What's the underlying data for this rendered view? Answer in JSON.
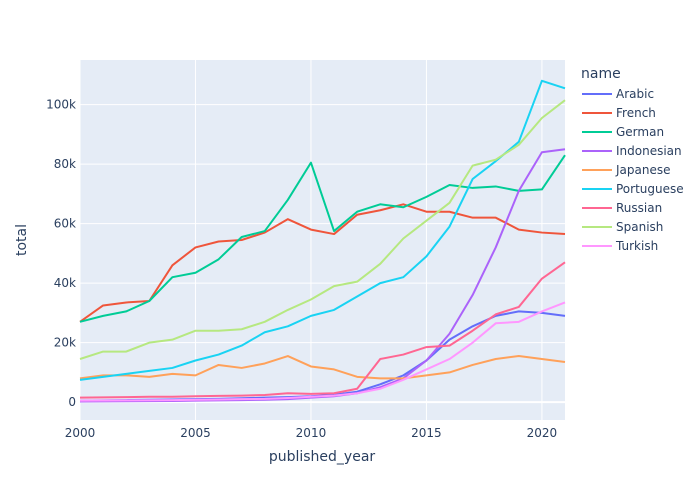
{
  "chart_data": {
    "type": "line",
    "xlabel": "published_year",
    "ylabel": "total",
    "xlim": [
      2000,
      2021
    ],
    "ylim": [
      -6000,
      115000
    ],
    "grid": true,
    "legend_title": "name",
    "legend_position": "right",
    "x_ticks": [
      2000,
      2005,
      2010,
      2015,
      2020
    ],
    "x_tick_labels": [
      "2000",
      "2005",
      "2010",
      "2015",
      "2020"
    ],
    "y_ticks": [
      0,
      20000,
      40000,
      60000,
      80000,
      100000
    ],
    "y_tick_labels": [
      "0",
      "20k",
      "40k",
      "60k",
      "80k",
      "100k"
    ],
    "x": [
      2000,
      2001,
      2002,
      2003,
      2004,
      2005,
      2006,
      2007,
      2008,
      2009,
      2010,
      2011,
      2012,
      2013,
      2014,
      2015,
      2016,
      2017,
      2018,
      2019,
      2020,
      2021
    ],
    "series": [
      {
        "name": "Arabic",
        "color": "#636efa",
        "values": [
          500,
          600,
          700,
          800,
          900,
          1000,
          1100,
          1300,
          1500,
          1700,
          2000,
          2500,
          3500,
          6000,
          9000,
          14000,
          21000,
          25500,
          29000,
          30500,
          30000,
          29000
        ]
      },
      {
        "name": "French",
        "color": "#EF553B",
        "values": [
          27000,
          32500,
          33500,
          34000,
          46000,
          52000,
          54000,
          54500,
          57000,
          61500,
          58000,
          56500,
          63000,
          64500,
          66500,
          64000,
          64000,
          62000,
          62000,
          58000,
          57000,
          56500
        ]
      },
      {
        "name": "German",
        "color": "#00cc96",
        "values": [
          27000,
          29000,
          30500,
          34000,
          42000,
          43500,
          48000,
          55500,
          57500,
          68000,
          80500,
          57500,
          64000,
          66500,
          65500,
          69000,
          73000,
          72000,
          72500,
          71000,
          71500,
          83000
        ]
      },
      {
        "name": "Indonesian",
        "color": "#ab63fa",
        "values": [
          200,
          250,
          300,
          350,
          400,
          500,
          600,
          700,
          800,
          1000,
          1500,
          2000,
          3000,
          5000,
          8000,
          14000,
          23000,
          36000,
          52000,
          71000,
          84000,
          85000
        ]
      },
      {
        "name": "Japanese",
        "color": "#FFA15A",
        "values": [
          8000,
          9000,
          9000,
          8500,
          9500,
          9000,
          12500,
          11500,
          13000,
          15500,
          12000,
          11000,
          8500,
          8000,
          8000,
          9000,
          10000,
          12500,
          14500,
          15500,
          14500,
          13500
        ]
      },
      {
        "name": "Portuguese",
        "color": "#19d3f3",
        "values": [
          7500,
          8500,
          9500,
          10500,
          11500,
          14000,
          16000,
          19000,
          23500,
          25500,
          29000,
          31000,
          35500,
          40000,
          42000,
          49000,
          59000,
          75000,
          81000,
          87500,
          108000,
          105500
        ]
      },
      {
        "name": "Russian",
        "color": "#FF6692",
        "values": [
          1500,
          1600,
          1700,
          1800,
          1800,
          2000,
          2100,
          2200,
          2400,
          3000,
          2800,
          3000,
          4500,
          14500,
          16000,
          18500,
          19000,
          24000,
          29500,
          32000,
          41500,
          47000
        ]
      },
      {
        "name": "Spanish",
        "color": "#B6E880",
        "values": [
          14500,
          17000,
          17000,
          20000,
          21000,
          24000,
          24000,
          24500,
          27000,
          31000,
          34500,
          39000,
          40500,
          46500,
          55000,
          61000,
          67000,
          79500,
          81500,
          86500,
          95500,
          101500
        ]
      },
      {
        "name": "Turkish",
        "color": "#FF97FF",
        "values": [
          500,
          550,
          600,
          650,
          700,
          800,
          900,
          1000,
          1100,
          1400,
          1800,
          2200,
          3000,
          4500,
          7500,
          11000,
          14500,
          20000,
          26500,
          27000,
          30500,
          33500
        ]
      }
    ]
  }
}
